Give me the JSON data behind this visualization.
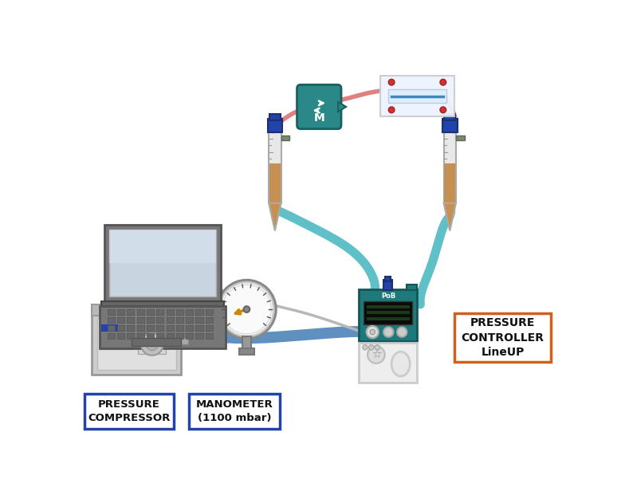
{
  "bg_color": "#ffffff",
  "labels": {
    "pressure_compressor": "PRESSURE\nCOMPRESSOR",
    "manometer": "MANOMETER\n(1100 mbar)",
    "pressure_controller": "PRESSURE\nCONTROLLER\nLineUP"
  },
  "label_box_color_blue": "#2244aa",
  "label_box_color_orange": "#d06020",
  "tube_color_blue": "#6090c0",
  "tube_color_teal": "#60c0c8",
  "tube_color_red": "#e08080",
  "tube_color_gray": "#b8b8b8",
  "device_teal": "#1e7a7a",
  "liquid_color": "#c89050",
  "connector_blue": "#2244aa",
  "vial_glass": "#e8e8e8",
  "vial_ec": "#aaaaaa"
}
